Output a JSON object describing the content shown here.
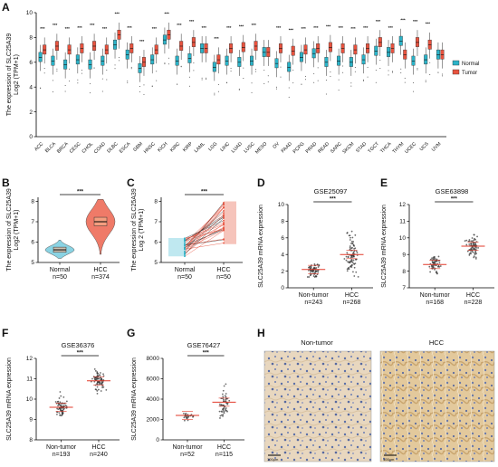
{
  "figure": {
    "panels": {
      "A": "A",
      "B": "B",
      "C": "C",
      "D": "D",
      "E": "E",
      "F": "F",
      "G": "G",
      "H": "H"
    }
  },
  "panelH": {
    "left_title": "Non-tumor",
    "right_title": "HCC",
    "scale_left": "100μm",
    "scale_right": "100μm"
  },
  "chart_data": [
    {
      "panel": "A",
      "type": "box",
      "ylabel_line1": "The expression of SLC25A39",
      "ylabel_line2": "Log2 (TPM+1)",
      "ylim": [
        0,
        10
      ],
      "yticks": [
        0,
        2,
        4,
        6,
        8,
        10
      ],
      "legend_position": "right",
      "legend": [
        {
          "name": "Normal",
          "color": "#2bb3c8"
        },
        {
          "name": "Tumor",
          "color": "#e8533f"
        }
      ],
      "categories": [
        "ACC",
        "BLCA",
        "BRCA",
        "CESC",
        "CHOL",
        "COAD",
        "DLBC",
        "ESCA",
        "GBM",
        "HNSC",
        "KICH",
        "KIRC",
        "KIRP",
        "LAML",
        "LGG",
        "LIHC",
        "LUAD",
        "LUSC",
        "MESO",
        "OV",
        "PAAD",
        "PCPG",
        "PRAD",
        "READ",
        "SARC",
        "SKCM",
        "STAD",
        "TGCT",
        "THCA",
        "THYM",
        "UCEC",
        "UCS",
        "UVM"
      ],
      "significance": [
        "***",
        "***",
        "***",
        "***",
        "***",
        "***",
        "***",
        "***",
        "***",
        "***",
        "***",
        "***",
        "***",
        "***",
        "***",
        "***",
        "***",
        "***",
        "",
        "***",
        "***",
        "***",
        "***",
        "***",
        "***",
        "***",
        "***",
        "***",
        "***",
        "***",
        "***",
        "***",
        ""
      ],
      "series": [
        {
          "name": "Normal",
          "medians": [
            6.4,
            6.1,
            5.8,
            6.2,
            5.8,
            6.1,
            7.4,
            6.6,
            5.5,
            6.2,
            7.8,
            6.1,
            6.3,
            7.1,
            5.6,
            6.1,
            6.0,
            6.1,
            6.8,
            5.9,
            5.6,
            6.4,
            6.7,
            6.0,
            6.1,
            6.0,
            6.2,
            6.9,
            6.8,
            7.7,
            6.1,
            6.2,
            6.6
          ]
        },
        {
          "name": "Tumor",
          "medians": [
            7.0,
            7.3,
            7.0,
            7.1,
            7.3,
            7.0,
            8.2,
            7.1,
            6.0,
            7.0,
            8.2,
            7.3,
            7.6,
            7.1,
            6.2,
            7.1,
            7.2,
            7.3,
            6.8,
            7.1,
            6.9,
            7.0,
            7.1,
            7.2,
            7.1,
            7.0,
            7.1,
            7.6,
            7.1,
            6.6,
            7.6,
            7.4,
            6.6
          ]
        }
      ]
    },
    {
      "panel": "B",
      "type": "violin",
      "ylabel_line1": "The expression of SLC25A39",
      "ylabel_line2": "Log2 (TPM+1)",
      "ylim": [
        5,
        8.2
      ],
      "yticks": [
        5,
        6,
        7,
        8
      ],
      "categories": [
        "Normal",
        "HCC"
      ],
      "counts": [
        "n=50",
        "n=374"
      ],
      "significance": "***",
      "series": [
        {
          "name": "Normal",
          "median": 5.62,
          "q1": 5.5,
          "q3": 5.75,
          "min": 5.2,
          "max": 6.1
        },
        {
          "name": "HCC",
          "median": 7.0,
          "q1": 6.8,
          "q3": 7.22,
          "min": 5.4,
          "max": 8.1
        }
      ]
    },
    {
      "panel": "C",
      "type": "paired-line",
      "ylabel_line1": "The expression of SLC25A39",
      "ylabel_line2": "Log 2 (TPM+1)",
      "ylim": [
        5,
        8.2
      ],
      "yticks": [
        5,
        6,
        7,
        8
      ],
      "categories": [
        "Normal",
        "HCC"
      ],
      "counts": [
        "n=50",
        "n=50"
      ],
      "significance": "***",
      "normal_range": [
        5.3,
        6.2
      ],
      "hcc_range": [
        5.9,
        8.0
      ]
    },
    {
      "panel": "D",
      "type": "scatter",
      "title": "GSE25097",
      "ylabel": "SLC25A39 mRNA expression",
      "ylim": [
        0,
        10
      ],
      "yticks": [
        0,
        2,
        4,
        6,
        8,
        10
      ],
      "categories": [
        "Non-tumor",
        "HCC"
      ],
      "counts": [
        "n=243",
        "n=268"
      ],
      "significance": "***",
      "means": [
        2.2,
        4.0
      ],
      "ranges": [
        [
          1.3,
          4.2
        ],
        [
          1.0,
          9.5
        ]
      ]
    },
    {
      "panel": "E",
      "type": "scatter",
      "title": "GSE63898",
      "ylabel": "SLC25A39 mRNA expression",
      "ylim": [
        7,
        12
      ],
      "yticks": [
        7,
        8,
        9,
        10,
        11,
        12
      ],
      "categories": [
        "Non-tumor",
        "HCC"
      ],
      "counts": [
        "n=168",
        "n=228"
      ],
      "significance": "***",
      "means": [
        8.4,
        9.5
      ],
      "ranges": [
        [
          7.6,
          9.4
        ],
        [
          8.0,
          10.9
        ]
      ]
    },
    {
      "panel": "F",
      "type": "scatter",
      "title": "GSE36376",
      "ylabel": "SLC25A39 mRNA expression",
      "ylim": [
        8,
        12
      ],
      "yticks": [
        8,
        9,
        10,
        11,
        12
      ],
      "categories": [
        "Non-tumor",
        "HCC"
      ],
      "counts": [
        "n=193",
        "n=240"
      ],
      "significance": "***",
      "means": [
        9.6,
        10.9
      ],
      "ranges": [
        [
          8.8,
          10.7
        ],
        [
          9.6,
          11.8
        ]
      ]
    },
    {
      "panel": "G",
      "type": "scatter",
      "title": "GSE76427",
      "ylabel": "SLC25A39 mRNA expression",
      "ylim": [
        0,
        8000
      ],
      "yticks": [
        0,
        2000,
        4000,
        6000,
        8000
      ],
      "categories": [
        "Non-tumor",
        "HCC"
      ],
      "counts": [
        "n=52",
        "n=115"
      ],
      "significance": "***",
      "means": [
        2400,
        3700
      ],
      "ranges": [
        [
          1700,
          3500
        ],
        [
          1200,
          6800
        ]
      ]
    }
  ]
}
